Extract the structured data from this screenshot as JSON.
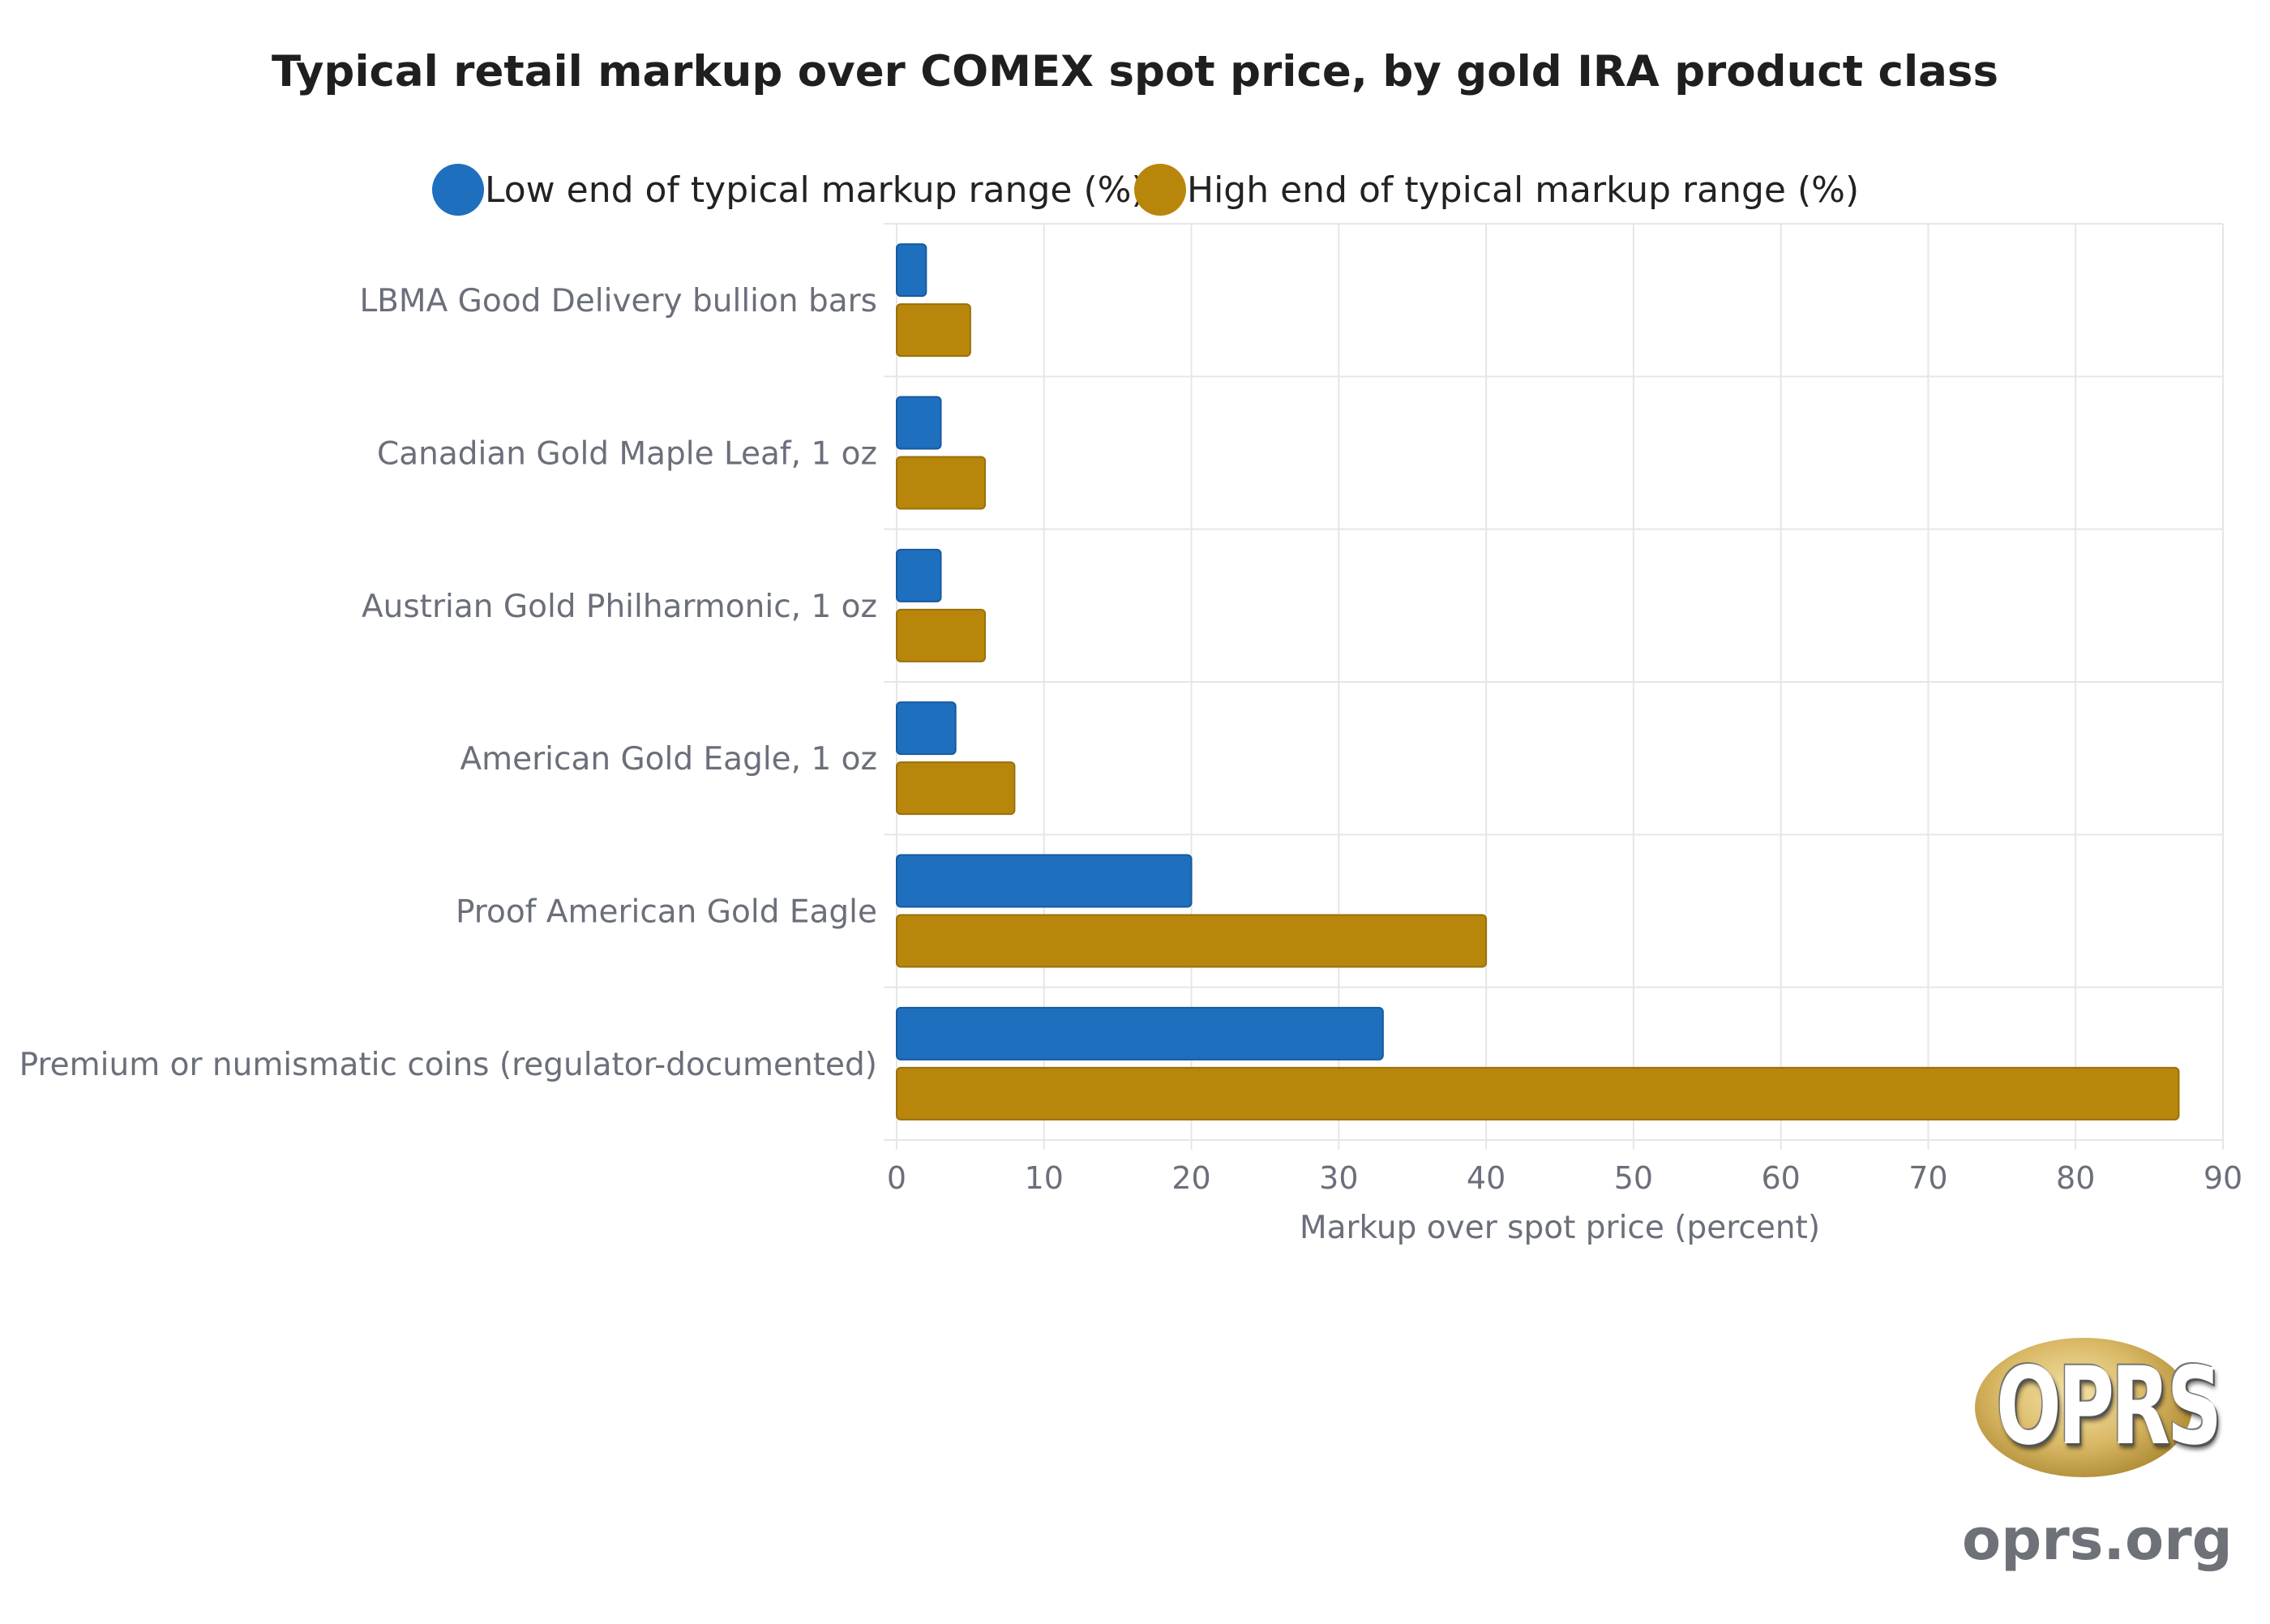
{
  "chart_data": {
    "type": "bar",
    "orientation": "horizontal",
    "title": "Typical retail markup over COMEX spot price, by gold IRA product class",
    "categories": [
      "LBMA Good Delivery bullion bars",
      "Canadian Gold Maple Leaf, 1 oz",
      "Austrian Gold Philharmonic, 1 oz",
      "American Gold Eagle, 1 oz",
      "Proof American Gold Eagle",
      "Premium or numismatic coins (regulator-documented)"
    ],
    "series": [
      {
        "name": "Low end of typical markup range (%)",
        "color": "#1f6fbf",
        "values": [
          2,
          3,
          3,
          4,
          20,
          33
        ]
      },
      {
        "name": "High end of typical markup range (%)",
        "color": "#b8860b",
        "values": [
          5,
          6,
          6,
          8,
          40,
          87
        ]
      }
    ],
    "xlabel": "Markup over spot price (percent)",
    "ylabel": "",
    "xlim": [
      0,
      90
    ],
    "xticks": [
      0,
      10,
      20,
      30,
      40,
      50,
      60,
      70,
      80,
      90
    ],
    "grid": true,
    "legend": "top-center"
  },
  "branding": {
    "logo_text": "OPRS",
    "url": "oprs.org"
  }
}
